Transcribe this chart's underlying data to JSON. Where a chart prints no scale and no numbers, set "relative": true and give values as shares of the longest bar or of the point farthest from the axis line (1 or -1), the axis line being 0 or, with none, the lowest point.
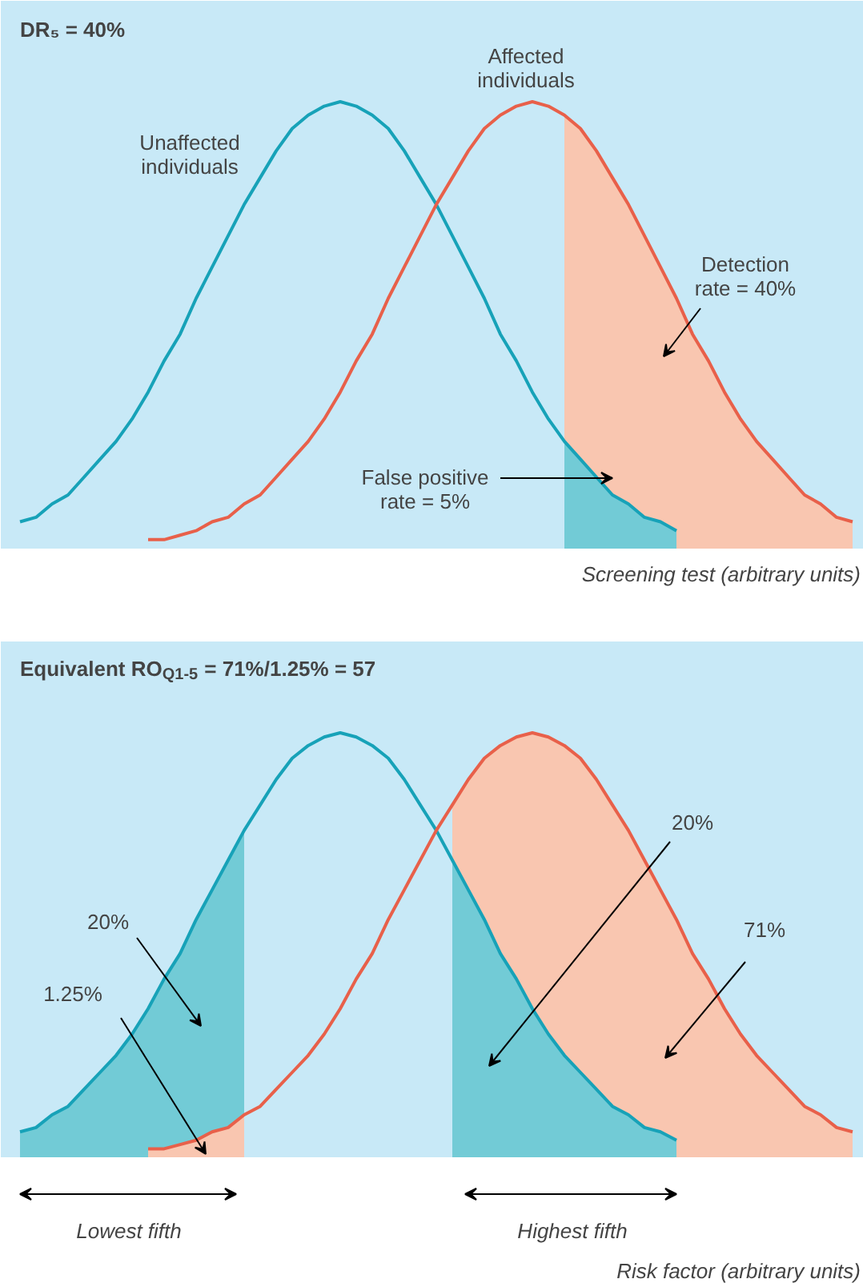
{
  "chart_data": [
    {
      "type": "line",
      "relative": true,
      "title": "DR₅ = 40%",
      "xlabel": "Screening test (arbitrary units)",
      "categories": [
        null,
        null,
        null,
        null,
        null,
        null,
        null,
        null,
        null,
        null,
        null,
        null,
        null,
        null,
        null,
        null,
        null,
        null,
        null,
        null,
        null,
        null,
        null,
        null,
        null,
        null,
        null,
        null,
        null,
        null,
        null,
        null,
        null,
        null,
        null,
        null,
        null,
        null,
        null,
        null,
        null,
        null,
        null,
        null,
        null,
        null,
        null,
        null,
        null,
        null,
        null,
        null,
        null
      ],
      "series": [
        {
          "type": "area",
          "color": "#f9c6b0",
          "values": [
            null,
            null,
            null,
            null,
            null,
            null,
            null,
            null,
            null,
            null,
            null,
            null,
            null,
            null,
            null,
            null,
            null,
            null,
            null,
            null,
            null,
            null,
            null,
            null,
            null,
            null,
            null,
            null,
            null,
            null,
            null,
            null,
            null,
            null,
            0.97,
            0.94,
            0.89,
            0.83,
            0.77,
            0.7,
            0.63,
            0.56,
            0.48,
            0.42,
            0.35,
            0.29,
            0.24,
            0.2,
            0.16,
            0.12,
            0.1,
            0.07,
            0.06
          ]
        },
        {
          "type": "area",
          "color": "#72cbd6",
          "values": [
            null,
            null,
            null,
            null,
            null,
            null,
            null,
            null,
            null,
            null,
            null,
            null,
            null,
            null,
            null,
            null,
            null,
            null,
            null,
            null,
            null,
            null,
            null,
            null,
            null,
            null,
            null,
            null,
            null,
            null,
            null,
            null,
            null,
            null,
            0.24,
            0.2,
            0.16,
            0.12,
            0.1,
            0.07,
            0.06,
            0.04,
            null,
            null,
            null,
            null,
            null,
            null,
            null,
            null,
            null,
            null,
            null
          ]
        },
        {
          "color": "#17a2b8",
          "values": [
            0.06,
            0.07,
            0.1,
            0.12,
            0.16,
            0.2,
            0.24,
            0.29,
            0.35,
            0.42,
            0.48,
            0.56,
            0.63,
            0.7,
            0.77,
            0.83,
            0.89,
            0.94,
            0.97,
            0.99,
            1.0,
            0.99,
            0.97,
            0.94,
            0.89,
            0.83,
            0.77,
            0.7,
            0.63,
            0.56,
            0.48,
            0.42,
            0.35,
            0.29,
            0.24,
            0.2,
            0.16,
            0.12,
            0.1,
            0.07,
            0.06,
            0.04,
            null,
            null,
            null,
            null,
            null,
            null,
            null,
            null,
            null,
            null,
            null
          ]
        },
        {
          "color": "#e8604a",
          "values": [
            null,
            null,
            null,
            null,
            null,
            null,
            null,
            null,
            0.02,
            0.02,
            0.03,
            0.04,
            0.06,
            0.07,
            0.1,
            0.12,
            0.16,
            0.2,
            0.24,
            0.29,
            0.35,
            0.42,
            0.48,
            0.56,
            0.63,
            0.7,
            0.77,
            0.83,
            0.89,
            0.94,
            0.97,
            0.99,
            1.0,
            0.99,
            0.97,
            0.94,
            0.89,
            0.83,
            0.77,
            0.7,
            0.63,
            0.56,
            0.48,
            0.42,
            0.35,
            0.29,
            0.24,
            0.2,
            0.16,
            0.12,
            0.1,
            0.07,
            0.06
          ]
        }
      ],
      "annotations": [
        "Unaffected\nindividuals",
        "Affected\nindividuals",
        "Detection\nrate = 40%",
        "False positive\nrate = 5%"
      ]
    },
    {
      "type": "line",
      "relative": true,
      "title": "Equivalent RO$_{Q1-5}$ = 71%/1.25% = 57",
      "xlabel": "Risk factor (arbitrary units)",
      "categories": [
        null,
        null,
        null,
        null,
        null,
        null,
        null,
        null,
        null,
        null,
        null,
        null,
        null,
        null,
        null,
        null,
        null,
        null,
        null,
        null,
        null,
        null,
        null,
        null,
        null,
        null,
        null,
        null,
        null,
        null,
        null,
        null,
        null,
        null,
        null,
        null,
        null,
        null,
        null,
        null,
        null,
        null,
        null,
        null,
        null,
        null,
        null,
        null,
        null,
        null,
        null,
        null,
        null
      ],
      "series": [
        {
          "type": "area",
          "color": "#72cbd6",
          "values": [
            0.06,
            0.07,
            0.1,
            0.12,
            0.16,
            0.2,
            0.24,
            0.29,
            0.35,
            0.42,
            0.48,
            0.56,
            0.63,
            0.7,
            0.77,
            null,
            null,
            null,
            null,
            null,
            null,
            null,
            null,
            null,
            null,
            null,
            null,
            null,
            null,
            null,
            null,
            null,
            null,
            null,
            null,
            null,
            null,
            null,
            null,
            null,
            null,
            null,
            null,
            null,
            null,
            null,
            null,
            null,
            null,
            null,
            null,
            null,
            null
          ]
        },
        {
          "type": "area",
          "color": "#f9c6b0",
          "values": [
            null,
            null,
            null,
            null,
            null,
            null,
            null,
            null,
            0.02,
            0.02,
            0.03,
            0.04,
            0.06,
            0.07,
            0.1,
            null,
            null,
            null,
            null,
            null,
            null,
            null,
            null,
            null,
            null,
            null,
            null,
            null,
            null,
            null,
            null,
            null,
            null,
            null,
            null,
            null,
            null,
            null,
            null,
            null,
            null,
            null,
            null,
            null,
            null,
            null,
            null,
            null,
            null,
            null,
            null,
            null,
            null
          ]
        },
        {
          "type": "area",
          "color": "#f9c6b0",
          "values": [
            null,
            null,
            null,
            null,
            null,
            null,
            null,
            null,
            null,
            null,
            null,
            null,
            null,
            null,
            null,
            null,
            null,
            null,
            null,
            null,
            null,
            null,
            null,
            null,
            null,
            null,
            null,
            0.83,
            0.89,
            0.94,
            0.97,
            0.99,
            1.0,
            0.99,
            0.97,
            0.94,
            0.89,
            0.83,
            0.77,
            0.7,
            0.63,
            0.56,
            0.48,
            0.42,
            0.35,
            0.29,
            0.24,
            0.2,
            0.16,
            0.12,
            0.1,
            0.07,
            0.06
          ]
        },
        {
          "type": "area",
          "color": "#72cbd6",
          "values": [
            null,
            null,
            null,
            null,
            null,
            null,
            null,
            null,
            null,
            null,
            null,
            null,
            null,
            null,
            null,
            null,
            null,
            null,
            null,
            null,
            null,
            null,
            null,
            null,
            null,
            null,
            null,
            0.7,
            0.63,
            0.56,
            0.48,
            0.42,
            0.35,
            0.29,
            0.24,
            0.2,
            0.16,
            0.12,
            0.1,
            0.07,
            0.06,
            0.04,
            null,
            null,
            null,
            null,
            null,
            null,
            null,
            null,
            null,
            null,
            null
          ]
        },
        {
          "color": "#17a2b8",
          "values": [
            0.06,
            0.07,
            0.1,
            0.12,
            0.16,
            0.2,
            0.24,
            0.29,
            0.35,
            0.42,
            0.48,
            0.56,
            0.63,
            0.7,
            0.77,
            0.83,
            0.89,
            0.94,
            0.97,
            0.99,
            1.0,
            0.99,
            0.97,
            0.94,
            0.89,
            0.83,
            0.77,
            0.7,
            0.63,
            0.56,
            0.48,
            0.42,
            0.35,
            0.29,
            0.24,
            0.2,
            0.16,
            0.12,
            0.1,
            0.07,
            0.06,
            0.04,
            null,
            null,
            null,
            null,
            null,
            null,
            null,
            null,
            null,
            null,
            null
          ]
        },
        {
          "color": "#e8604a",
          "values": [
            null,
            null,
            null,
            null,
            null,
            null,
            null,
            null,
            0.02,
            0.02,
            0.03,
            0.04,
            0.06,
            0.07,
            0.1,
            0.12,
            0.16,
            0.2,
            0.24,
            0.29,
            0.35,
            0.42,
            0.48,
            0.56,
            0.63,
            0.7,
            0.77,
            0.83,
            0.89,
            0.94,
            0.97,
            0.99,
            1.0,
            0.99,
            0.97,
            0.94,
            0.89,
            0.83,
            0.77,
            0.7,
            0.63,
            0.56,
            0.48,
            0.42,
            0.35,
            0.29,
            0.24,
            0.2,
            0.16,
            0.12,
            0.1,
            0.07,
            0.06
          ]
        }
      ],
      "annotations": [
        "20%",
        "1.25%",
        "20%",
        "71%",
        "Lowest fifth",
        "Highest fifth"
      ]
    }
  ]
}
